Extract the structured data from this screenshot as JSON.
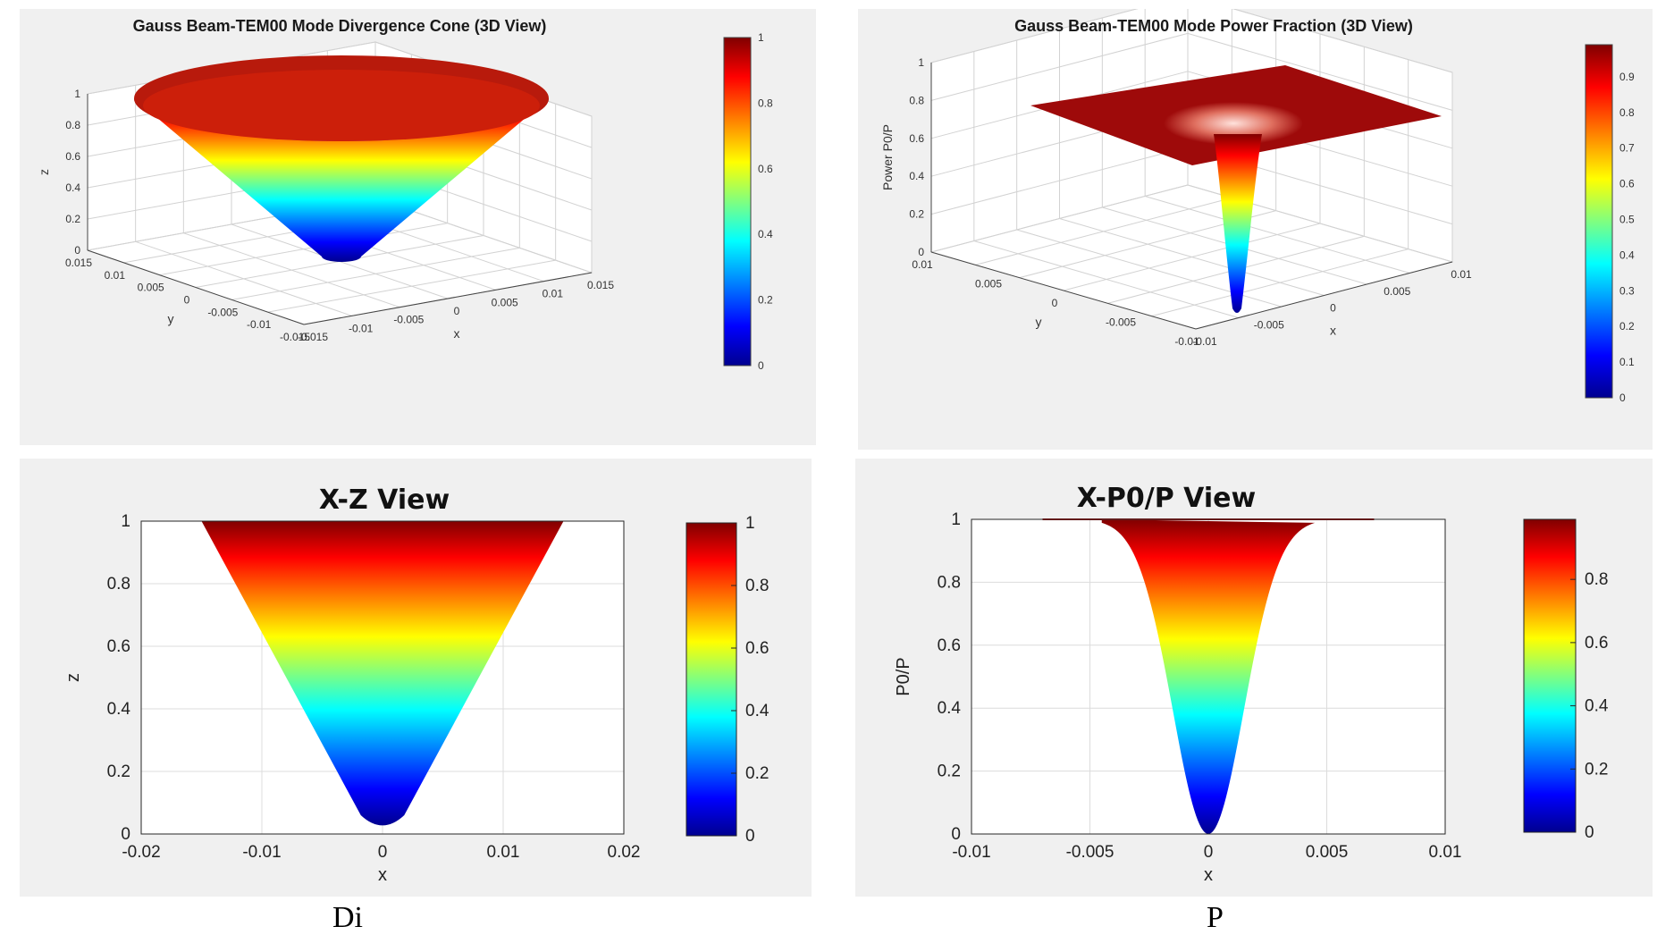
{
  "colors": {
    "panel_bg": "#f0f0f0",
    "colormap_jet": [
      "#00008f",
      "#0000ff",
      "#00ffff",
      "#ffff00",
      "#ff0000",
      "#800000"
    ]
  },
  "captions": {
    "left": "Di",
    "right": "P"
  },
  "chart_data": [
    {
      "type": "surface3d",
      "title": "Gauss Beam-TEM00 Mode Divergence Cone (3D View)",
      "xlabel": "x",
      "ylabel": "y",
      "zlabel": "z",
      "xlim": [
        -0.015,
        0.015
      ],
      "ylim": [
        -0.015,
        0.015
      ],
      "zlim": [
        0,
        1
      ],
      "x_ticks": [
        "-0.015",
        "-0.01",
        "-0.005",
        "0",
        "0.005",
        "0.01",
        "0.015"
      ],
      "y_ticks": [
        "0.015",
        "0.01",
        "0.005",
        "0",
        "-0.005",
        "-0.01",
        "-0.015"
      ],
      "z_ticks": [
        "0",
        "0.2",
        "0.4",
        "0.6",
        "0.8",
        "1"
      ],
      "colorbar": {
        "min": 0,
        "max": 1,
        "ticks": [
          "0",
          "0.2",
          "0.4",
          "0.6",
          "0.8",
          "1"
        ]
      },
      "surface": "cone",
      "z_top": 1,
      "top_radius": 0.015,
      "bottom_radius": 0.0015,
      "grid": true
    },
    {
      "type": "surface3d",
      "title": "Gauss Beam-TEM00 Mode Power Fraction (3D View)",
      "xlabel": "x",
      "ylabel": "y",
      "zlabel": "Power P0/P",
      "xlim": [
        -0.01,
        0.01
      ],
      "ylim": [
        -0.01,
        0.01
      ],
      "zlim": [
        0,
        1
      ],
      "x_ticks": [
        "-0.01",
        "-0.005",
        "0",
        "0.005",
        "0.01"
      ],
      "y_ticks": [
        "0.01",
        "0.005",
        "0",
        "-0.005",
        "-0.01"
      ],
      "z_ticks": [
        "0",
        "0.2",
        "0.4",
        "0.6",
        "0.8",
        "1"
      ],
      "colorbar": {
        "min": 0,
        "max": 0.99,
        "ticks": [
          "0",
          "0.1",
          "0.2",
          "0.3",
          "0.4",
          "0.5",
          "0.6",
          "0.7",
          "0.8",
          "0.9"
        ]
      },
      "surface": "gaussian-well",
      "plateau": 1,
      "well_width": 0.0015,
      "grid": true
    },
    {
      "type": "area",
      "title": "X-Z View",
      "xlabel": "x",
      "ylabel": "z",
      "xlim": [
        -0.02,
        0.02
      ],
      "ylim": [
        0,
        1
      ],
      "x_ticks": [
        "-0.02",
        "-0.01",
        "0",
        "0.01",
        "0.02"
      ],
      "y_ticks": [
        "0",
        "0.2",
        "0.4",
        "0.6",
        "0.8",
        "1"
      ],
      "x_tick_values": [
        -0.02,
        -0.01,
        0,
        0.01,
        0.02
      ],
      "y_tick_values": [
        0,
        0.2,
        0.4,
        0.6,
        0.8,
        1
      ],
      "shape": "cone-profile",
      "half_width_top": 0.015,
      "half_width_bottom": 0.0015,
      "colorbar": {
        "min": 0,
        "max": 1,
        "ticks": [
          "0",
          "0.2",
          "0.4",
          "0.6",
          "0.8",
          "1"
        ],
        "tick_values": [
          0,
          0.2,
          0.4,
          0.6,
          0.8,
          1
        ]
      },
      "grid": true
    },
    {
      "type": "area",
      "title": "X-P0/P View",
      "xlabel": "x",
      "ylabel": "P0/P",
      "xlim": [
        -0.01,
        0.01
      ],
      "ylim": [
        0,
        1
      ],
      "x_ticks": [
        "-0.01",
        "-0.005",
        "0",
        "0.005",
        "0.01"
      ],
      "y_ticks": [
        "0",
        "0.2",
        "0.4",
        "0.6",
        "0.8",
        "1"
      ],
      "x_tick_values": [
        -0.01,
        -0.005,
        0,
        0.005,
        0.01
      ],
      "y_tick_values": [
        0,
        0.2,
        0.4,
        0.6,
        0.8,
        1
      ],
      "shape": "gaussian-well",
      "well_width": 0.0015,
      "line_extent": [
        -0.007,
        0.007
      ],
      "colorbar": {
        "min": 0,
        "max": 0.99,
        "ticks": [
          "0",
          "0.2",
          "0.4",
          "0.6",
          "0.8"
        ],
        "tick_values": [
          0,
          0.2,
          0.4,
          0.6,
          0.8
        ]
      },
      "grid": true
    }
  ]
}
